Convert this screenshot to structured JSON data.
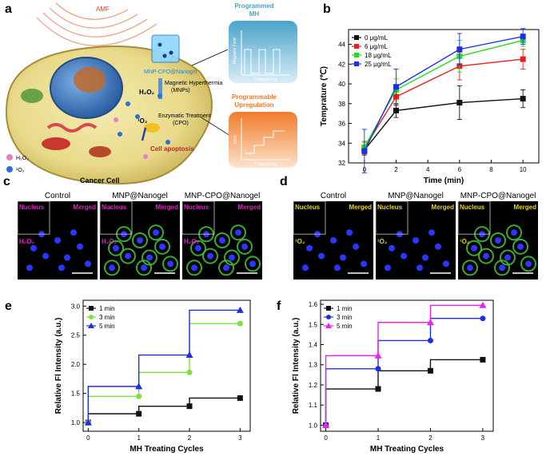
{
  "panels": {
    "a": "a",
    "b": "b",
    "c": "c",
    "d": "d",
    "e": "e",
    "f": "f"
  },
  "panel_a": {
    "amf": "AMF",
    "nanogel": "MNP-CPO@Nanogel",
    "mh_label_1": "Magnetic Hyperthermia",
    "mh_label_2": "(MNPs)",
    "enz_label_1": "Enzymatic Treatment",
    "enz_label_2": "(CPO)",
    "h2o2": "H₂O₂",
    "o2": "¹O₂",
    "cell_apoptosis": "Cell apoptosis",
    "cancer_cell": "Cancer Cell",
    "legend_h2o2": "H₂O₂",
    "legend_o2": "¹O₂",
    "prog_mh_title_1": "Programmed",
    "prog_mh_title_2": "MH",
    "prog_mh_ylabel": "Magnetic Field",
    "prog_mh_xlabel": "Frequency",
    "prog_up_title_1": "Programmable",
    "prog_up_title_2": "Upregulation",
    "prog_up_ylabel": "ROS",
    "prog_up_xlabel": "Frequency",
    "colors": {
      "prog_mh": "#4aa3c9",
      "prog_up": "#f07c2a",
      "apoptosis": "#c0282a"
    }
  },
  "panel_c": {
    "headers": [
      "Control",
      "MNP@Nanogel",
      "MNP-CPO@Nanogel"
    ],
    "nucleus": "Nucleus",
    "merged": "Merged",
    "probe": "H₂O₂",
    "label_color": "#e020c8"
  },
  "panel_d": {
    "headers": [
      "Control",
      "MNP@Nanogel",
      "MNP-CPO@Nanogel"
    ],
    "nucleus": "Nucleus",
    "merged": "Merged",
    "probe": "¹O₂",
    "label_color": "#e8d020"
  },
  "chart_data": [
    {
      "id": "b",
      "type": "line",
      "title": "",
      "xlabel": "Time (min)",
      "ylabel": "Temprature (℃)",
      "x": [
        0,
        2,
        6,
        10
      ],
      "xticks": [
        0,
        2,
        4,
        6,
        8,
        10
      ],
      "yticks": [
        32,
        34,
        36,
        38,
        40,
        42,
        44
      ],
      "xlim": [
        -1,
        11
      ],
      "ylim": [
        32,
        45.5
      ],
      "legend_position": "top-left",
      "series": [
        {
          "name": "0 μg/mL",
          "color": "#111111",
          "marker": "square",
          "values": [
            33.3,
            37.3,
            38.1,
            38.5
          ],
          "errors": [
            0.5,
            0.7,
            1.7,
            0.9
          ]
        },
        {
          "name": "6 μg/mL",
          "color": "#ee1c1c",
          "marker": "square",
          "values": [
            33.5,
            38.7,
            41.8,
            42.5
          ],
          "errors": [
            0.6,
            0.9,
            1.4,
            1.0
          ]
        },
        {
          "name": "18 μg/mL",
          "color": "#22dd22",
          "marker": "square",
          "values": [
            33.6,
            39.4,
            42.8,
            44.4
          ],
          "errors": [
            0.6,
            1.1,
            1.6,
            0.6
          ]
        },
        {
          "name": "25 μg/mL",
          "color": "#1d2fe6",
          "marker": "square",
          "values": [
            33.2,
            39.7,
            43.5,
            44.8
          ],
          "errors": [
            2.2,
            1.8,
            1.6,
            0.8
          ]
        }
      ]
    },
    {
      "id": "e",
      "type": "line",
      "step": true,
      "xlabel": "MH Treating Cycles",
      "ylabel": "Relative Fl Intensity (a.u.)",
      "x": [
        0,
        1,
        2,
        3
      ],
      "xticks": [
        0,
        1,
        2,
        3
      ],
      "yticks": [
        1.0,
        1.5,
        2.0,
        2.5,
        3.0
      ],
      "ytick_labels": [
        "1.0",
        "1.5",
        "2.0",
        "2.5",
        "3.0"
      ],
      "xlim": [
        -0.1,
        3.2
      ],
      "ylim": [
        0.85,
        3.1
      ],
      "legend_position": "top-left",
      "series": [
        {
          "name": "1 min",
          "color": "#111111",
          "marker": "square",
          "values": [
            1.0,
            1.15,
            1.28,
            1.42
          ]
        },
        {
          "name": "3 min",
          "color": "#7ee03a",
          "marker": "circle",
          "values": [
            1.0,
            1.45,
            1.86,
            2.7
          ]
        },
        {
          "name": "5 min",
          "color": "#1d2fe6",
          "marker": "triangle",
          "values": [
            1.0,
            1.62,
            2.16,
            2.93
          ]
        }
      ]
    },
    {
      "id": "f",
      "type": "line",
      "step": true,
      "xlabel": "MH Treating Cycles",
      "ylabel": "Relative Fl Intensity (a.u.)",
      "x": [
        0,
        1,
        2,
        3
      ],
      "xticks": [
        0,
        1,
        2,
        3
      ],
      "yticks": [
        1.0,
        1.1,
        1.2,
        1.3,
        1.4,
        1.5,
        1.6
      ],
      "ytick_labels": [
        "1.0",
        "1.1",
        "1.2",
        "1.3",
        "1.4",
        "1.5",
        "1.6"
      ],
      "xlim": [
        -0.1,
        3.2
      ],
      "ylim": [
        0.97,
        1.62
      ],
      "legend_position": "top-left",
      "series": [
        {
          "name": "1 min",
          "color": "#111111",
          "marker": "square",
          "values": [
            1.0,
            1.18,
            1.27,
            1.325
          ]
        },
        {
          "name": "3 min",
          "color": "#1d2fe6",
          "marker": "circle",
          "values": [
            1.0,
            1.28,
            1.42,
            1.53
          ]
        },
        {
          "name": "5 min",
          "color": "#ee22ee",
          "marker": "triangle",
          "values": [
            1.0,
            1.345,
            1.51,
            1.595
          ]
        }
      ]
    }
  ]
}
